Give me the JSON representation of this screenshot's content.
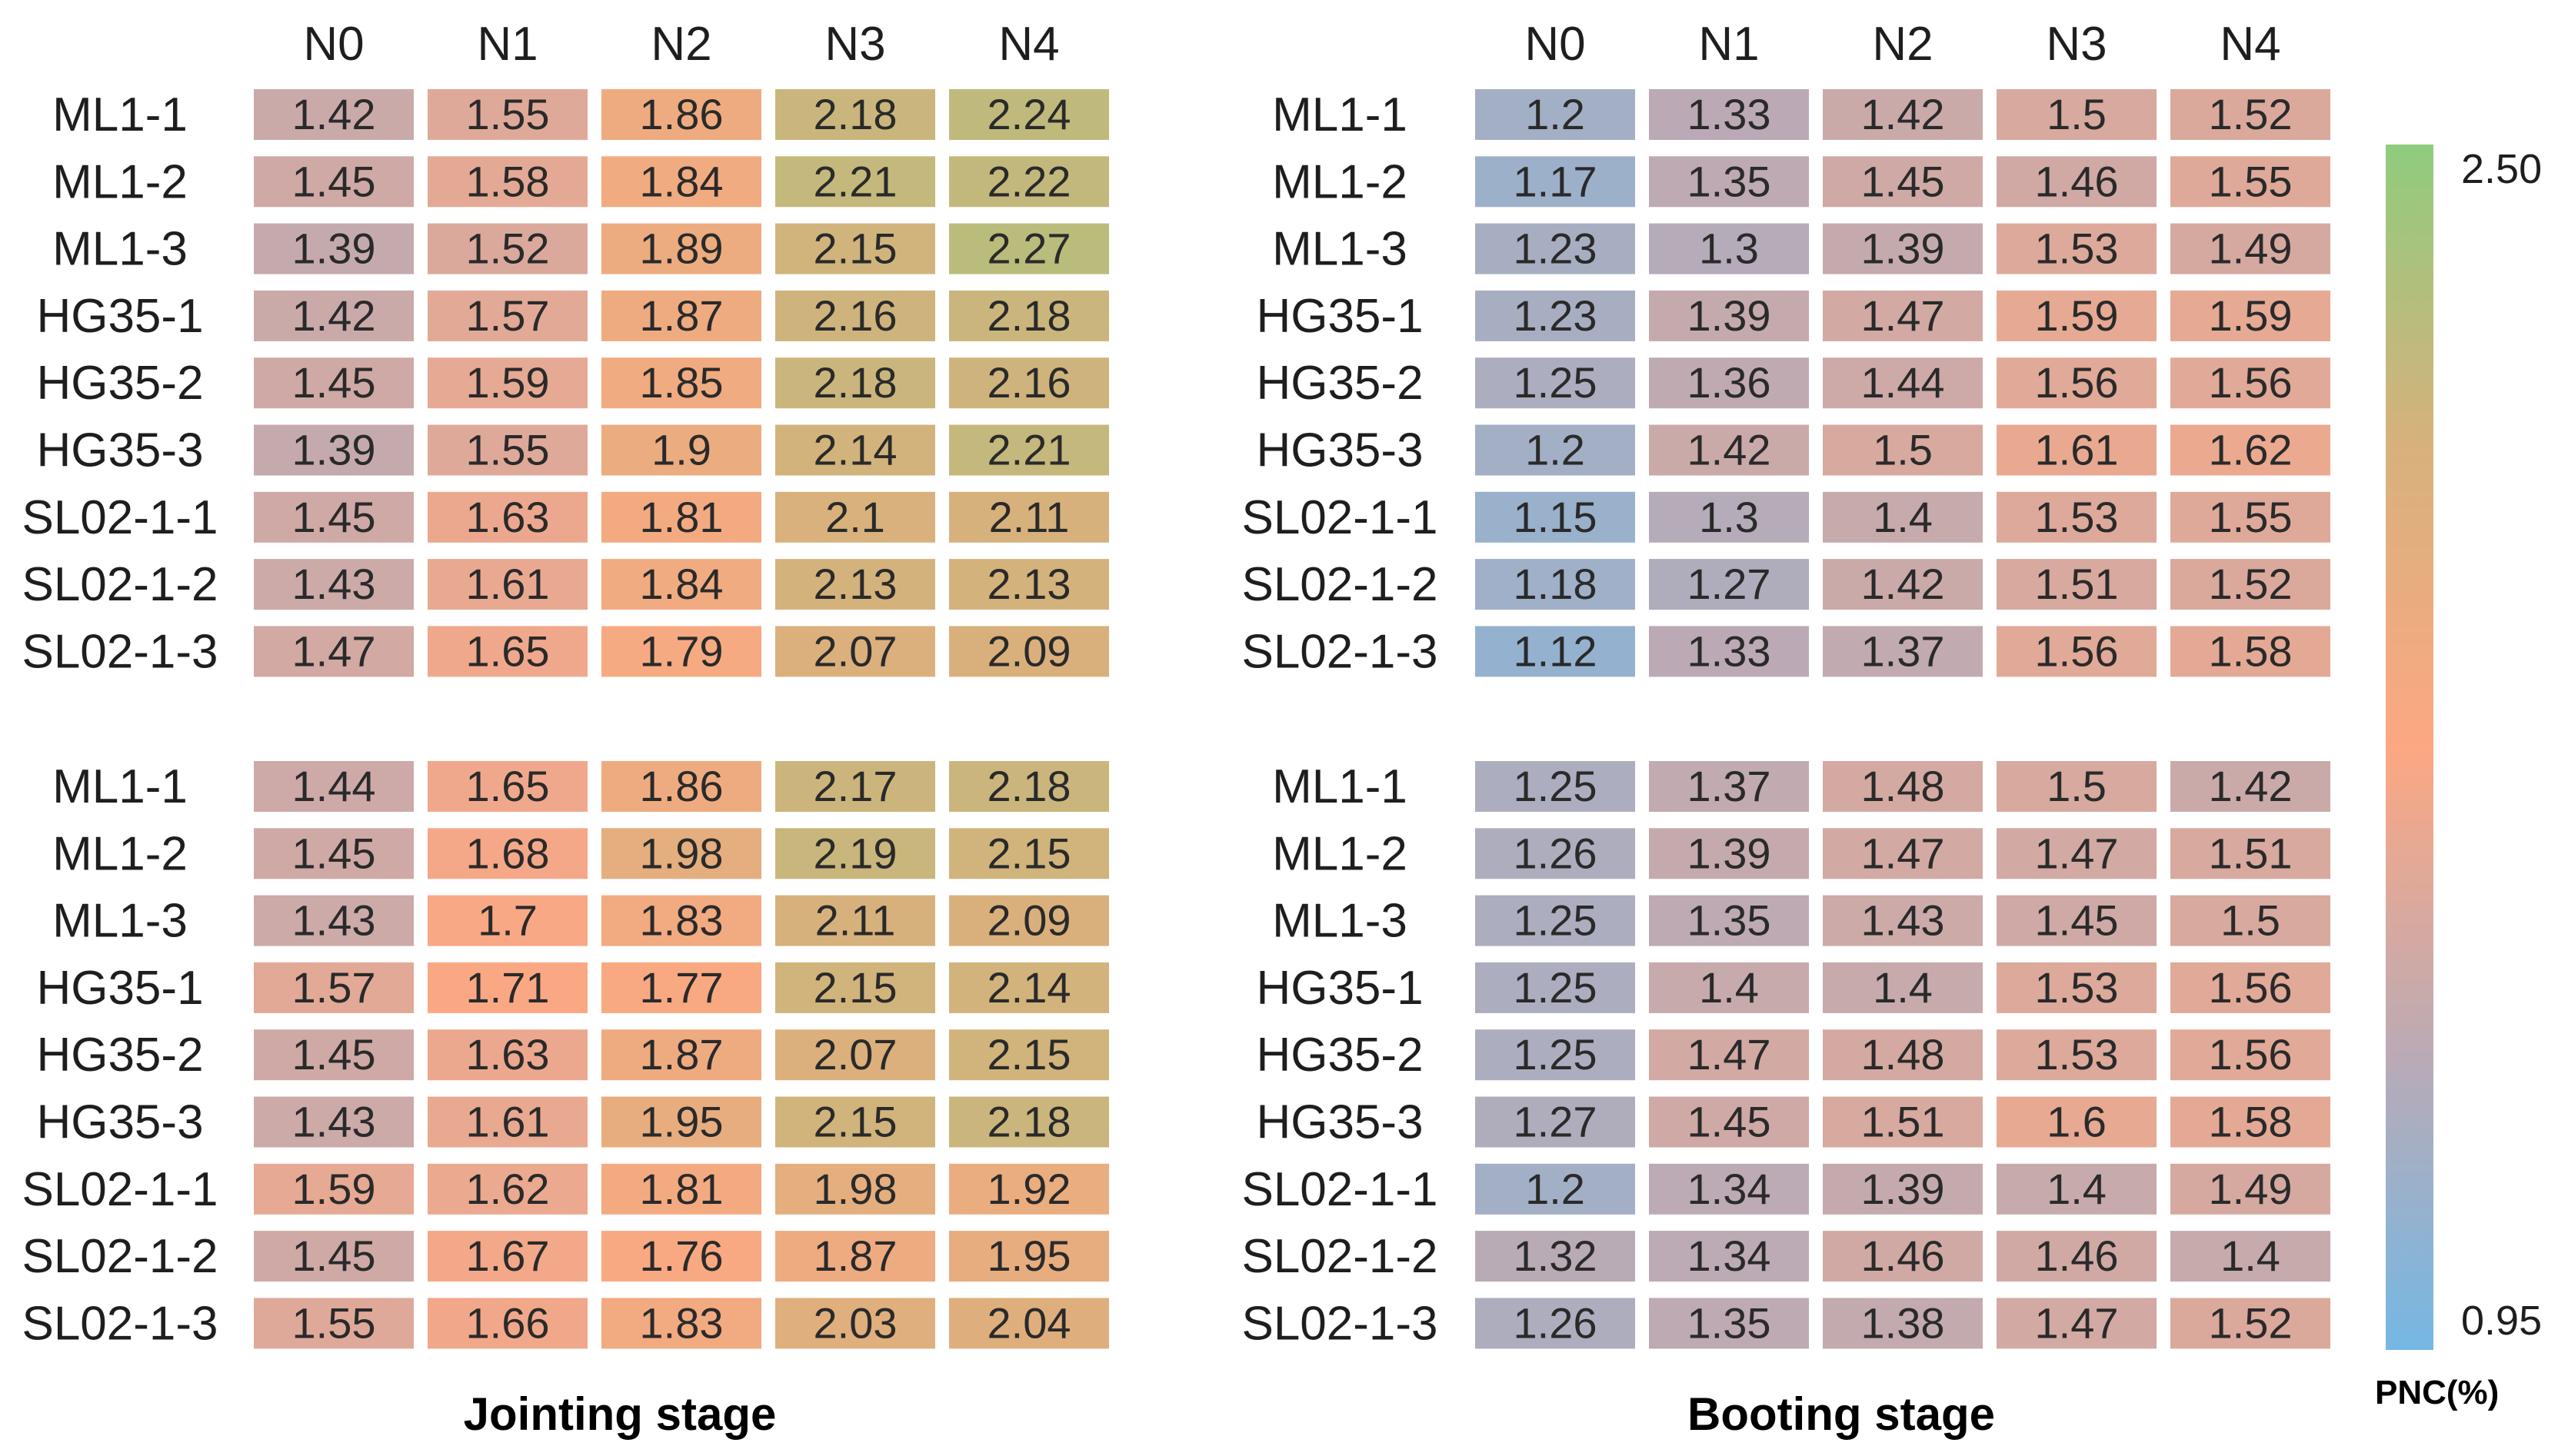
{
  "chart_data": {
    "type": "heatmap",
    "colorbar": {
      "min": 0.95,
      "max": 2.5,
      "min_label": "0.95",
      "max_label": "2.50",
      "title": "PNC(%)",
      "colors": [
        "#74b8e4",
        "#bcaab4",
        "#fca882",
        "#d7b17c",
        "#8fcc7d"
      ]
    },
    "panels": [
      {
        "columns": [
          "N0",
          "N1",
          "N2",
          "N3",
          "N4"
        ],
        "stage": "Jointing stage",
        "blocks": [
          {
            "rows": [
              "ML1-1",
              "ML1-2",
              "ML1-3",
              "HG35-1",
              "HG35-2",
              "HG35-3",
              "SL02-1-1",
              "SL02-1-2",
              "SL02-1-3"
            ],
            "values": [
              [
                "1.42",
                "1.55",
                "1.86",
                "2.18",
                "2.24"
              ],
              [
                "1.45",
                "1.58",
                "1.84",
                "2.21",
                "2.22"
              ],
              [
                "1.39",
                "1.52",
                "1.89",
                "2.15",
                "2.27"
              ],
              [
                "1.42",
                "1.57",
                "1.87",
                "2.16",
                "2.18"
              ],
              [
                "1.45",
                "1.59",
                "1.85",
                "2.18",
                "2.16"
              ],
              [
                "1.39",
                "1.55",
                "1.9",
                "2.14",
                "2.21"
              ],
              [
                "1.45",
                "1.63",
                "1.81",
                "2.1",
                "2.11"
              ],
              [
                "1.43",
                "1.61",
                "1.84",
                "2.13",
                "2.13"
              ],
              [
                "1.47",
                "1.65",
                "1.79",
                "2.07",
                "2.09"
              ]
            ]
          },
          {
            "rows": [
              "ML1-1",
              "ML1-2",
              "ML1-3",
              "HG35-1",
              "HG35-2",
              "HG35-3",
              "SL02-1-1",
              "SL02-1-2",
              "SL02-1-3"
            ],
            "values": [
              [
                "1.44",
                "1.65",
                "1.86",
                "2.17",
                "2.18"
              ],
              [
                "1.45",
                "1.68",
                "1.98",
                "2.19",
                "2.15"
              ],
              [
                "1.43",
                "1.7",
                "1.83",
                "2.11",
                "2.09"
              ],
              [
                "1.57",
                "1.71",
                "1.77",
                "2.15",
                "2.14"
              ],
              [
                "1.45",
                "1.63",
                "1.87",
                "2.07",
                "2.15"
              ],
              [
                "1.43",
                "1.61",
                "1.95",
                "2.15",
                "2.18"
              ],
              [
                "1.59",
                "1.62",
                "1.81",
                "1.98",
                "1.92"
              ],
              [
                "1.45",
                "1.67",
                "1.76",
                "1.87",
                "1.95"
              ],
              [
                "1.55",
                "1.66",
                "1.83",
                "2.03",
                "2.04"
              ]
            ]
          }
        ]
      },
      {
        "columns": [
          "N0",
          "N1",
          "N2",
          "N3",
          "N4"
        ],
        "stage": "Booting stage",
        "blocks": [
          {
            "rows": [
              "ML1-1",
              "ML1-2",
              "ML1-3",
              "HG35-1",
              "HG35-2",
              "HG35-3",
              "SL02-1-1",
              "SL02-1-2",
              "SL02-1-3"
            ],
            "values": [
              [
                "1.2",
                "1.33",
                "1.42",
                "1.5",
                "1.52"
              ],
              [
                "1.17",
                "1.35",
                "1.45",
                "1.46",
                "1.55"
              ],
              [
                "1.23",
                "1.3",
                "1.39",
                "1.53",
                "1.49"
              ],
              [
                "1.23",
                "1.39",
                "1.47",
                "1.59",
                "1.59"
              ],
              [
                "1.25",
                "1.36",
                "1.44",
                "1.56",
                "1.56"
              ],
              [
                "1.2",
                "1.42",
                "1.5",
                "1.61",
                "1.62"
              ],
              [
                "1.15",
                "1.3",
                "1.4",
                "1.53",
                "1.55"
              ],
              [
                "1.18",
                "1.27",
                "1.42",
                "1.51",
                "1.52"
              ],
              [
                "1.12",
                "1.33",
                "1.37",
                "1.56",
                "1.58"
              ]
            ]
          },
          {
            "rows": [
              "ML1-1",
              "ML1-2",
              "ML1-3",
              "HG35-1",
              "HG35-2",
              "HG35-3",
              "SL02-1-1",
              "SL02-1-2",
              "SL02-1-3"
            ],
            "values": [
              [
                "1.25",
                "1.37",
                "1.48",
                "1.5",
                "1.42"
              ],
              [
                "1.26",
                "1.39",
                "1.47",
                "1.47",
                "1.51"
              ],
              [
                "1.25",
                "1.35",
                "1.43",
                "1.45",
                "1.5"
              ],
              [
                "1.25",
                "1.4",
                "1.4",
                "1.53",
                "1.56"
              ],
              [
                "1.25",
                "1.47",
                "1.48",
                "1.53",
                "1.56"
              ],
              [
                "1.27",
                "1.45",
                "1.51",
                "1.6",
                "1.58"
              ],
              [
                "1.2",
                "1.34",
                "1.39",
                "1.4",
                "1.49"
              ],
              [
                "1.32",
                "1.34",
                "1.46",
                "1.46",
                "1.4"
              ],
              [
                "1.26",
                "1.35",
                "1.38",
                "1.47",
                "1.52"
              ]
            ]
          }
        ]
      }
    ]
  }
}
